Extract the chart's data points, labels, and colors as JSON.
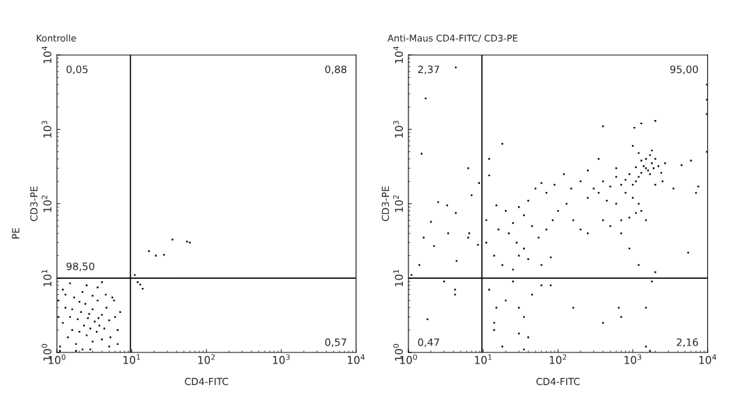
{
  "chart_data": [
    {
      "type": "scatter",
      "title": "Kontrolle",
      "xlabel": "CD4-FITC",
      "ylabel": "CD3-PE",
      "log": "xy",
      "grid": false,
      "marker": "square",
      "xlim": [
        1,
        10000
      ],
      "ylim": [
        1,
        10000
      ],
      "xticks": [
        {
          "value": 1,
          "label": "10$^{0}$"
        },
        {
          "value": 10,
          "label": "10$^{1}$"
        },
        {
          "value": 100,
          "label": "10$^{2}$"
        },
        {
          "value": 1000,
          "label": "10$^{3}$"
        },
        {
          "value": 10000,
          "label": "10$^{4}$"
        }
      ],
      "yticks": [
        {
          "value": 1,
          "label": "10$^{0}$"
        },
        {
          "value": 10,
          "label": "10$^{1}$"
        },
        {
          "value": 100,
          "label": "10$^{2}$"
        },
        {
          "value": 1000,
          "label": "10$^{3}$"
        },
        {
          "value": 10000,
          "label": "10$^{4}$"
        }
      ],
      "ref_lines": [
        {
          "axis": "x",
          "value": 9.6,
          "color": "#000000"
        },
        {
          "axis": "y",
          "value": 10,
          "color": "#000000"
        }
      ],
      "annotations": [
        "0,05",
        "0,88",
        "98,50",
        "0,57",
        "PE"
      ],
      "series": [
        {
          "color": "#000000",
          "x": [
            1.1,
            1.2,
            1.3,
            1.4,
            1.5,
            1.6,
            1.7,
            1.8,
            1.9,
            2,
            2.1,
            2.2,
            2.3,
            2.4,
            2.5,
            2.6,
            2.8,
            3,
            3,
            3.2,
            3.4,
            3.5,
            3.7,
            4,
            4,
            4.3,
            4.6,
            5,
            5.2,
            5.5,
            6,
            6.5,
            7,
            1.2,
            1.5,
            2.5,
            3.5,
            4,
            1.1,
            1.8,
            2.8,
            5,
            6.5,
            1.3,
            2.2,
            3,
            4.5,
            5.8,
            1.05,
            1.05,
            1.6,
            2.7,
            3.6,
            2,
            11,
            12,
            13,
            14,
            17,
            21,
            27,
            35,
            55,
            60
          ],
          "values": [
            1.2,
            2.5,
            4,
            1.6,
            3,
            2,
            5.5,
            1.3,
            2.8,
            1.9,
            3.5,
            1.1,
            2.3,
            4.5,
            1.7,
            2.9,
            2.1,
            1.4,
            3.8,
            2.6,
            1.9,
            5,
            2.3,
            1.5,
            3.2,
            2.1,
            4,
            2.7,
            1.6,
            5.5,
            3,
            2,
            3.5,
            7,
            8.5,
            8,
            7.5,
            8.8,
            1.05,
            1.05,
            1.1,
            1.2,
            1.3,
            6,
            6.5,
            5.8,
            6,
            5,
            3,
            5,
            3.8,
            3.3,
            2.9,
            4.8,
            11,
            8.8,
            8.2,
            7.2,
            23,
            20,
            20.5,
            33,
            31,
            30
          ]
        }
      ]
    },
    {
      "type": "scatter",
      "title": "Anti-Maus CD4-FITC/ CD3-PE",
      "xlabel": "CD4-FITC",
      "ylabel": "CD3-PE",
      "log": "xy",
      "grid": false,
      "marker": "square",
      "xlim": [
        1,
        10000
      ],
      "ylim": [
        1,
        10000
      ],
      "xticks": [
        {
          "value": 1,
          "label": "10$^{0}$"
        },
        {
          "value": 10,
          "label": "10$^{1}$"
        },
        {
          "value": 100,
          "label": "10$^{2}$"
        },
        {
          "value": 1000,
          "label": "10$^{3}$"
        },
        {
          "value": 10000,
          "label": "10$^{4}$"
        }
      ],
      "yticks": [
        {
          "value": 1,
          "label": "10$^{0}$"
        },
        {
          "value": 10,
          "label": "10$^{1}$"
        },
        {
          "value": 100,
          "label": "10$^{2}$"
        },
        {
          "value": 1000,
          "label": "10$^{3}$"
        },
        {
          "value": 10000,
          "label": "10$^{4}$"
        }
      ],
      "ref_lines": [
        {
          "axis": "x",
          "value": 9.6,
          "color": "#000000"
        },
        {
          "axis": "y",
          "value": 10,
          "color": "#000000"
        }
      ],
      "annotations": [
        "2,37",
        "95,00",
        "0,47",
        "2,16"
      ],
      "series": [
        {
          "color": "#000000",
          "x": [
            1500,
            1600,
            1400,
            1700,
            1800,
            1300,
            1200,
            1900,
            2000,
            1100,
            1000,
            2200,
            2400,
            1500,
            1700,
            1300,
            1100,
            900,
            800,
            700,
            600,
            500,
            400,
            350,
            300,
            250,
            450,
            600,
            800,
            1000,
            1200,
            1300,
            1100,
            900,
            700,
            1500,
            2000,
            2500,
            2700,
            1800,
            1200,
            1000,
            1300,
            1050,
            400,
            2000,
            600,
            350,
            250,
            200,
            150,
            120,
            90,
            70,
            60,
            50,
            40,
            35,
            30,
            25,
            20,
            15,
            12,
            12,
            18,
            22,
            28,
            35,
            45,
            55,
            70,
            85,
            100,
            130,
            160,
            200,
            250,
            400,
            500,
            700,
            900,
            1200,
            2000,
            14,
            16,
            18,
            25,
            30,
            40,
            60,
            80,
            11,
            11,
            12,
            15,
            20,
            25,
            30,
            35,
            45,
            60,
            80,
            30,
            40,
            18,
            35,
            160,
            400,
            650,
            700,
            1500,
            1500,
            1700,
            1800,
            14,
            14,
            1.7,
            4.3,
            1.5,
            6.3,
            2.5,
            3.3,
            4.3,
            2,
            1.6,
            2.2,
            3.4,
            4.4,
            6.5,
            8.5,
            8.8,
            7,
            3,
            4.2,
            4.2,
            1.8,
            1.1,
            1.4,
            6.3,
            9800,
            9800,
            9800,
            9800,
            7500,
            7000,
            6000,
            4500,
            5500,
            3500
          ],
          "values": [
            300,
            280,
            320,
            250,
            350,
            260,
            230,
            300,
            400,
            200,
            180,
            320,
            260,
            400,
            450,
            380,
            310,
            250,
            210,
            180,
            230,
            170,
            200,
            140,
            160,
            120,
            110,
            100,
            140,
            120,
            100,
            80,
            75,
            65,
            60,
            60,
            180,
            200,
            350,
            520,
            480,
            600,
            1200,
            1050,
            1100,
            1300,
            300,
            400,
            280,
            200,
            160,
            250,
            180,
            140,
            190,
            160,
            110,
            70,
            90,
            55,
            80,
            95,
            240,
            400,
            640,
            40,
            30,
            25,
            50,
            35,
            45,
            60,
            80,
            100,
            60,
            45,
            40,
            60,
            50,
            40,
            25,
            15,
            12,
            20,
            45,
            15,
            13,
            20,
            18,
            15,
            19,
            60,
            30,
            7,
            4,
            5,
            9,
            4,
            3,
            6,
            8,
            8,
            1.8,
            1.6,
            1.2,
            1.1,
            4,
            2.5,
            4,
            3,
            4,
            1.2,
            1.05,
            9,
            2,
            2.5,
            2600,
            6800,
            470,
            300,
            105,
            95,
            75,
            57,
            35,
            27,
            40,
            17,
            40,
            28,
            190,
            130,
            9,
            6,
            7,
            2.8,
            11,
            15,
            35,
            2500,
            1600,
            500,
            4000,
            170,
            140,
            380,
            330,
            22,
            160
          ]
        }
      ]
    }
  ]
}
